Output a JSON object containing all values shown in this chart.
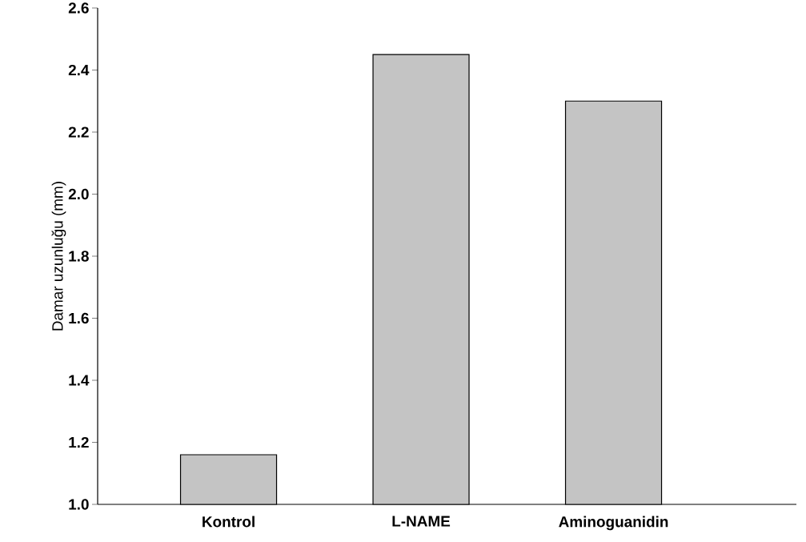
{
  "chart_data": {
    "type": "bar",
    "ylabel": "Damar uzunluğu (mm)",
    "categories": [
      "Kontrol",
      "L-NAME",
      "Aminoguanidin"
    ],
    "values": [
      1.16,
      2.45,
      2.3
    ],
    "color": "#c4c4c4",
    "ylim": [
      1.0,
      2.6
    ],
    "yticks": [
      {
        "value": 1,
        "label": "1.0"
      },
      1.2,
      1.4,
      1.6,
      1.8,
      {
        "value": 2,
        "label": "2.0"
      },
      2.2,
      2.4,
      2.6
    ],
    "grid": false
  }
}
